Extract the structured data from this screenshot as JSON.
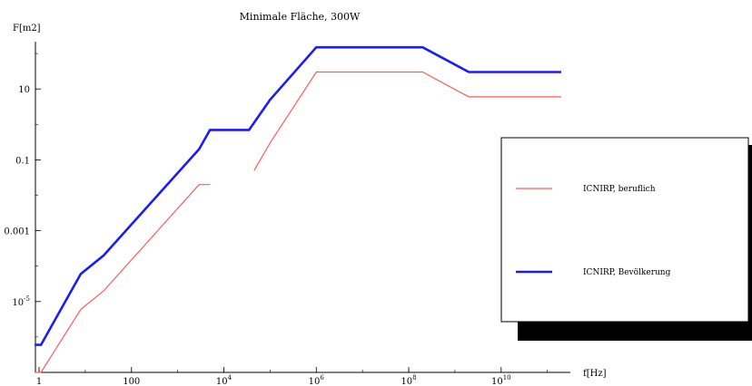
{
  "chart_data": {
    "type": "line",
    "title": "Minimale Fläche, 300W",
    "xlabel": "f[Hz]",
    "ylabel": "F[m2]",
    "x_scale": "log10",
    "y_scale": "log10",
    "xlim": [
      0.8,
      300000000000.0
    ],
    "ylim": [
      1e-07,
      1000
    ],
    "x_ticks": [
      {
        "value": 1,
        "label": "1"
      },
      {
        "value": 100,
        "label": "100"
      },
      {
        "value": 10000,
        "label": "10^4"
      },
      {
        "value": 1000000,
        "label": "10^6"
      },
      {
        "value": 100000000,
        "label": "10^8"
      },
      {
        "value": 10000000000,
        "label": "10^10"
      }
    ],
    "y_ticks": [
      {
        "value": 1e-05,
        "label": "10^-5"
      },
      {
        "value": 0.001,
        "label": "0.001"
      },
      {
        "value": 0.1,
        "label": "0.1"
      },
      {
        "value": 10,
        "label": "10"
      }
    ],
    "legend_position": "right",
    "series": [
      {
        "name": "ICNIRP, beruflich",
        "color": "#ff5a5a",
        "x": [
          0.8,
          1.1,
          8,
          25,
          2900,
          5000,
          6000,
          25000,
          35000,
          45000,
          100000,
          1000000,
          200000000,
          2000000000,
          200000000000.0
        ],
        "y": [
          1e-07,
          1e-07,
          6e-06,
          2e-05,
          0.02,
          0.02,
          null,
          0.02,
          null,
          0.05,
          0.3,
          30,
          30,
          6,
          6
        ]
      },
      {
        "name": "ICNIRP, Bevölkerung",
        "color": "#1a1aff",
        "x": [
          0.8,
          1.1,
          8,
          25,
          2900,
          5000,
          35000,
          100000,
          1000000,
          200000000,
          2000000000,
          200000000000.0
        ],
        "y": [
          6e-07,
          6e-07,
          6e-05,
          0.0002,
          0.2,
          0.7,
          0.7,
          5,
          150,
          150,
          30,
          30
        ]
      }
    ]
  }
}
